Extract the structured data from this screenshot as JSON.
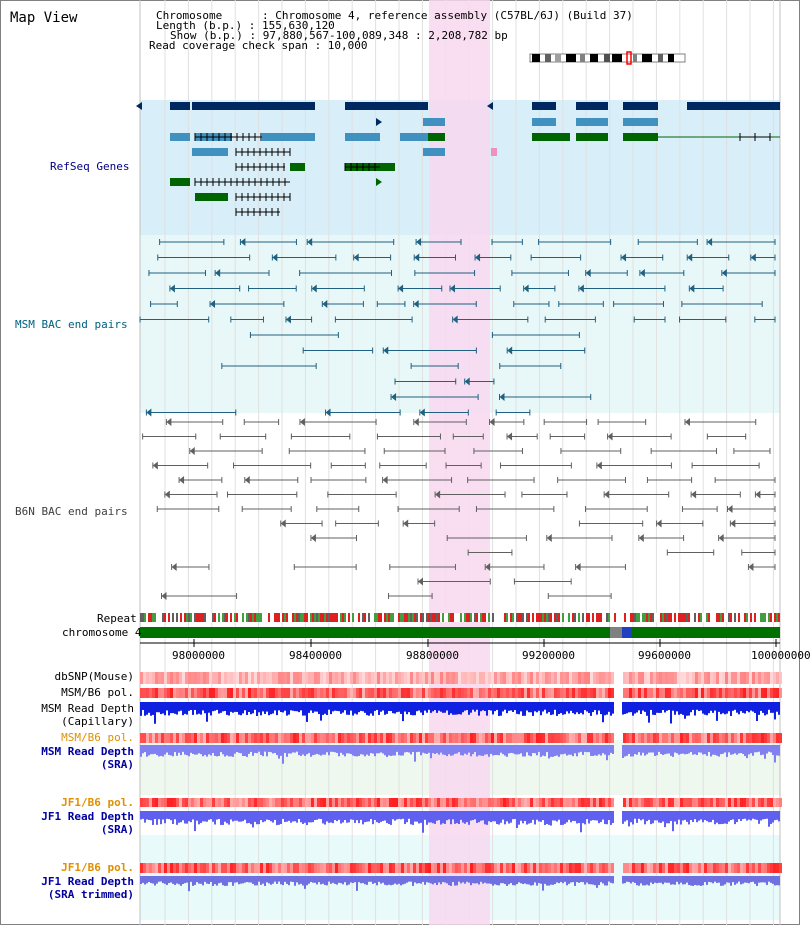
{
  "page": {
    "title": "Map View"
  },
  "info": {
    "chromosome": "Chromosome      : Chromosome 4, reference assembly (C57BL/6J) (Build 37)",
    "length": "Length (b.p.) : 155,630,120",
    "show": "Show (b.p.) : 97,880,567-100,089,348 : 2,208,782 bp",
    "read_coverage": "Read coverage check span : 10,000"
  },
  "colors": {
    "refseq_bg": "#d8eef8",
    "msm_bg": "#e8f8f8",
    "highlight": "#f8d8f0",
    "gene_dark": "#002860",
    "gene_mid": "#4090c0",
    "gene_green": "#006400",
    "msm_bac": "#206080",
    "b6n_bac": "#606060",
    "chromosome": "#007000"
  },
  "tracks": {
    "refseq_genes": "RefSeq Genes",
    "msm_bac": "MSM BAC end pairs",
    "b6n_bac": "B6N BAC end pairs",
    "repeat": "Repeat",
    "chromosome": "chromosome 4",
    "dbsnp": "dbSNP(Mouse)",
    "msm_b6_pol": "MSM/B6 pol.",
    "msm_depth_cap_1": "MSM Read Depth",
    "msm_depth_cap_2": "(Capillary)",
    "msm_b6_pol2": "MSM/B6 pol.",
    "msm_depth_sra_1": "MSM Read Depth",
    "msm_depth_sra_2": "(SRA)",
    "jf1_b6_pol": "JF1/B6 pol.",
    "jf1_depth_sra_1": "JF1 Read Depth",
    "jf1_depth_sra_2": "(SRA)",
    "jf1_b6_pol2": "JF1/B6 pol.",
    "jf1_depth_trim_1": "JF1 Read Depth",
    "jf1_depth_trim_2": "(SRA trimmed)"
  },
  "axis": {
    "ticks": [
      "98000000",
      "98400000",
      "98800000",
      "99200000",
      "99600000",
      "100000000"
    ]
  }
}
